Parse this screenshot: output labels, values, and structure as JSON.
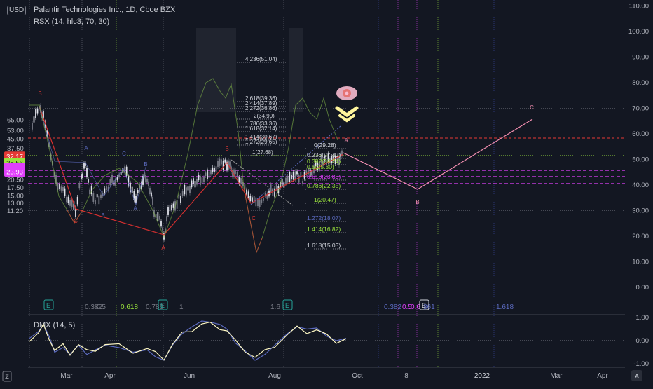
{
  "header": {
    "currency": "USD",
    "title": "Palantir Technologies Inc., 1D, Cboe BZX",
    "indicator": "RSX (14, hlc3, 70, 30)"
  },
  "chart_data": [
    {
      "type": "line",
      "name": "price",
      "ylim": [
        10,
        70
      ],
      "y_scale": "log",
      "left_axis_ticks": [
        "65.00",
        "53.00",
        "45.00",
        "37.50",
        "20.50",
        "17.50",
        "15.00",
        "13.00",
        "11.20"
      ],
      "price_labels": [
        {
          "text": "32.17",
          "value": 32.17,
          "color": "#e53935"
        },
        {
          "text": "28.56",
          "value": 28.56,
          "color": "#9be33d"
        },
        {
          "text": "25.93",
          "value": 25.93,
          "color": "#e040fb"
        },
        {
          "text": "24.95",
          "value": 24.95,
          "color": "#e040fb"
        },
        {
          "text": "23.93",
          "value": 23.93,
          "color": "#e040fb"
        }
      ],
      "x_ticks": [
        "Mar",
        "Apr",
        "Jun",
        "Aug",
        "Oct",
        "8",
        "2022",
        "Mar",
        "Apr"
      ],
      "pivots": [
        {
          "label": "B",
          "color": "#e53935"
        },
        {
          "label": "C",
          "color": "#e53935"
        },
        {
          "label": "A",
          "color": "#e53935"
        },
        {
          "label": "B",
          "color": "#e53935"
        },
        {
          "label": "C",
          "color": "#e53935"
        },
        {
          "label": "A",
          "color": "#f48fb1"
        },
        {
          "label": "B",
          "color": "#f48fb1"
        },
        {
          "label": "C",
          "color": "#f48fb1"
        },
        {
          "label": "A",
          "color": "#5c6bc0"
        },
        {
          "label": "B",
          "color": "#5c6bc0"
        },
        {
          "label": "C",
          "color": "#5c6bc0"
        },
        {
          "label": "A",
          "color": "#5c6bc0"
        },
        {
          "label": "B",
          "color": "#5c6bc0"
        }
      ],
      "fib_extension": [
        {
          "text": "4.236(51.04)",
          "color": "#d1d4dc"
        },
        {
          "text": "2.618(39.36)",
          "color": "#d1d4dc"
        },
        {
          "text": "2.414(37.89)",
          "color": "#d1d4dc"
        },
        {
          "text": "2.272(36.86)",
          "color": "#d1d4dc"
        },
        {
          "text": "2(34.90)",
          "color": "#d1d4dc"
        },
        {
          "text": "1.786(33.36)",
          "color": "#d1d4dc"
        },
        {
          "text": "1.618(32.14)",
          "color": "#d1d4dc"
        },
        {
          "text": "1.414(30.67)",
          "color": "#d1d4dc"
        },
        {
          "text": "1.272(29.65)",
          "color": "#d1d4dc"
        },
        {
          "text": "1(27.68)",
          "color": "#d1d4dc"
        }
      ],
      "fib_retracement": [
        {
          "text": "0(29.28)",
          "color": "#d1d4dc"
        },
        {
          "text": "0.236(27.40)",
          "color": "#d1d4dc"
        },
        {
          "text": "0.382(26.24)",
          "color": "#9be33d"
        },
        {
          "text": "0.5(25.30)",
          "color": "#9be33d"
        },
        {
          "text": "0.618(23.83)",
          "color": "#e040fb"
        },
        {
          "text": "0.786(22.35)",
          "color": "#9be33d"
        },
        {
          "text": "1(20.47)",
          "color": "#9be33d"
        },
        {
          "text": "1.272(18.07)",
          "color": "#5c6bc0"
        },
        {
          "text": "1.414(16.82)",
          "color": "#9be33d"
        },
        {
          "text": "1.618(15.03)",
          "color": "#d1d4dc"
        }
      ],
      "bottom_fib_labels": [
        {
          "text": "0.382",
          "color": "#787b86"
        },
        {
          "text": "0.5",
          "color": "#787b86"
        },
        {
          "text": "0.618",
          "color": "#9be33d"
        },
        {
          "text": "0.786",
          "color": "#787b86"
        },
        {
          "text": "1",
          "color": "#787b86"
        },
        {
          "text": "1.6",
          "color": "#787b86"
        },
        {
          "text": "0.382",
          "color": "#5c6bc0"
        },
        {
          "text": "0.5",
          "color": "#e040fb"
        },
        {
          "text": "0.6",
          "color": "#e040fb"
        },
        {
          "text": "861",
          "color": "#5c6bc0"
        },
        {
          "text": "1.618",
          "color": "#5c6bc0"
        }
      ],
      "event_badge": "E"
    },
    {
      "type": "line",
      "name": "rsx",
      "right_axis_ticks": [
        "110.00",
        "100.00",
        "90.00",
        "80.00",
        "70.00",
        "60.00",
        "50.00",
        "40.00",
        "30.00",
        "20.00",
        "10.00",
        "0.00"
      ],
      "overbought": 70,
      "oversold": 30
    },
    {
      "type": "line",
      "name": "dmx",
      "label": "DMX (14, 5)",
      "right_axis_ticks": [
        "1.00",
        "0.00",
        "-1.00"
      ],
      "ylim": [
        -1,
        1
      ]
    }
  ],
  "bottom_bar": {
    "zone_icon": "Z",
    "auto_label": "A"
  },
  "colors": {
    "background": "#131722",
    "candle_up": "#e0e3eb",
    "candle_down": "#787b86",
    "wave_red": "#d32f2f",
    "wave_pink": "#f48fb1",
    "rsx": "#8bc34a"
  },
  "icons": [
    "eye-icon",
    "chevron-down-icon"
  ]
}
